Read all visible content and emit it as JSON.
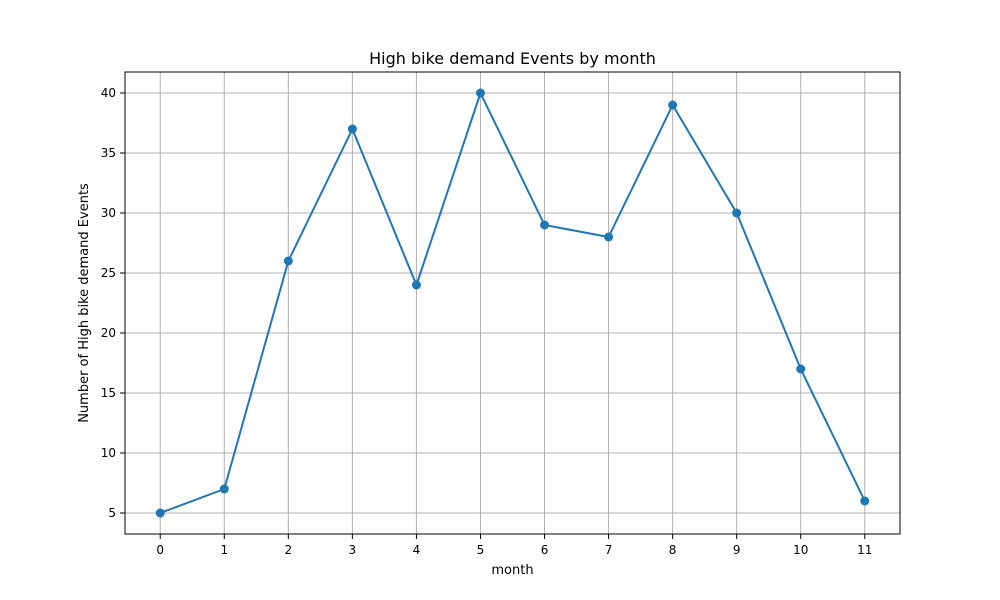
{
  "chart_data": {
    "type": "line",
    "title": "High bike demand Events by month",
    "xlabel": "month",
    "ylabel": "Number of High bike demand Events",
    "x": [
      0,
      1,
      2,
      3,
      4,
      5,
      6,
      7,
      8,
      9,
      10,
      11
    ],
    "series": [
      {
        "values": [
          5,
          7,
          26,
          37,
          24,
          40,
          29,
          28,
          39,
          30,
          17,
          6
        ]
      }
    ],
    "xlim": [
      -0.55,
      11.55
    ],
    "ylim": [
      3.25,
      41.75
    ],
    "xticks": [
      0,
      1,
      2,
      3,
      4,
      5,
      6,
      7,
      8,
      9,
      10,
      11
    ],
    "yticks": [
      5,
      10,
      15,
      20,
      25,
      30,
      35,
      40
    ],
    "grid": true,
    "marker": "circle",
    "line_color": "#1f77b4"
  }
}
